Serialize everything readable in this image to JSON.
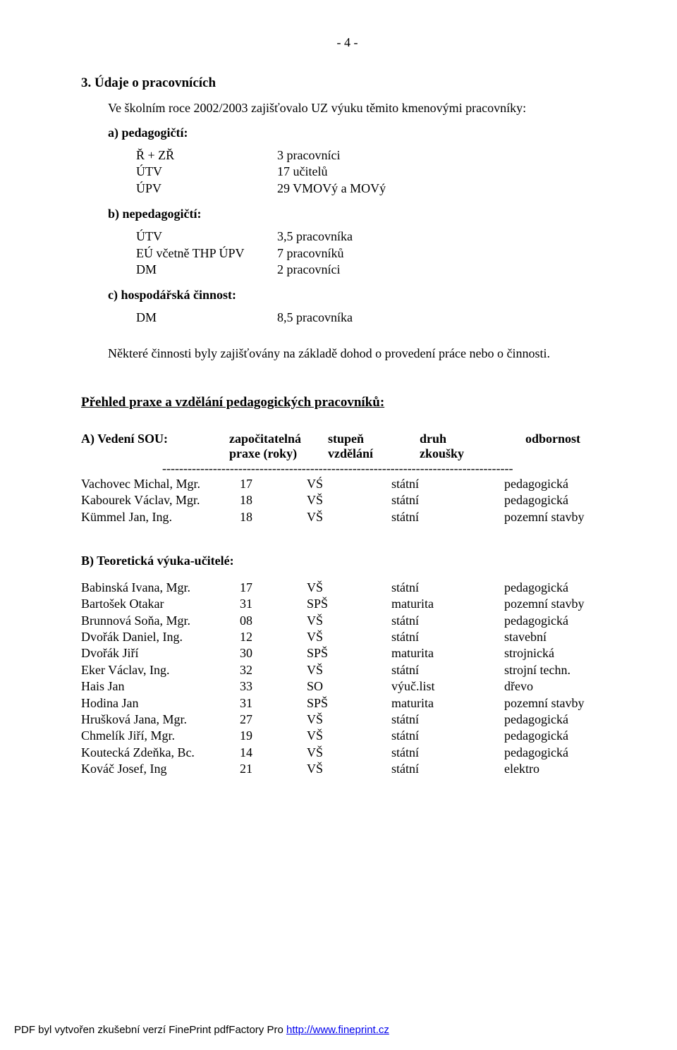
{
  "page_number": "- 4 -",
  "section_title": "3. Údaje o pracovnících",
  "intro": "Ve školním roce 2002/2003 zajišťovalo UZ výuku těmito kmenovými pracovníky:",
  "a_label": "a)  pedagogičtí:",
  "a_rows": [
    {
      "k": "Ř + ZŘ",
      "v": "3 pracovníci"
    },
    {
      "k": "ÚTV",
      "v": "17 učitelů"
    },
    {
      "k": "ÚPV",
      "v": "29 VMOVý a MOVý"
    }
  ],
  "b_label": "b)  nepedagogičtí:",
  "b_rows": [
    {
      "k": "ÚTV",
      "v": "3,5 pracovníka"
    },
    {
      "k": "EÚ včetně THP ÚPV",
      "v": "7 pracovníků"
    },
    {
      "k": "DM",
      "v": "2 pracovníci"
    }
  ],
  "c_label": "c)  hospodářská činnost:",
  "c_rows": [
    {
      "k": "DM",
      "v": "8,5 pracovníka"
    }
  ],
  "mid_para": "Některé činnosti byly zajišťovány na základě dohod o provedení práce nebo o činnosti.",
  "praxe_heading": "Přehled praxe a vzdělání pedagogických pracovníků:",
  "tabA_head": {
    "c1": "A)  Vedení SOU:",
    "c2": "započitatelná",
    "c3": "stupeň",
    "c4": "druh",
    "c5": "odbornost"
  },
  "tabA_sub": {
    "c2": "praxe (roky)",
    "c3": "vzdělání",
    "c4": "zkoušky"
  },
  "dashes": "-----------------------------------------------------------------------------------",
  "rowsA": [
    {
      "c1": "Vachovec Michal, Mgr.",
      "c2": "17",
      "c3": "VŚ",
      "c4": "státní",
      "c5": "pedagogická"
    },
    {
      "c1": "Kabourek Václav, Mgr.",
      "c2": "18",
      "c3": "VŠ",
      "c4": "státní",
      "c5": "pedagogická"
    },
    {
      "c1": "Kümmel Jan, Ing.",
      "c2": "18",
      "c3": "VŠ",
      "c4": "státní",
      "c5": "pozemní stavby"
    }
  ],
  "tabB_head": "B)  Teoretická výuka-učitelé:",
  "rowsB": [
    {
      "c1": "Babinská Ivana, Mgr.",
      "c2": "17",
      "c3": "VŠ",
      "c4": "státní",
      "c5": "pedagogická"
    },
    {
      "c1": "Bartošek Otakar",
      "c2": "31",
      "c3": "SPŠ",
      "c4": "maturita",
      "c5": "pozemní stavby"
    },
    {
      "c1": "Brunnová Soňa, Mgr.",
      "c2": "08",
      "c3": "VŠ",
      "c4": "státní",
      "c5": "pedagogická"
    },
    {
      "c1": "Dvořák Daniel, Ing.",
      "c2": "12",
      "c3": "VŠ",
      "c4": "státní",
      "c5": "stavební"
    },
    {
      "c1": "Dvořák Jiří",
      "c2": "30",
      "c3": "SPŠ",
      "c4": "maturita",
      "c5": "strojnická"
    },
    {
      "c1": "Eker Václav, Ing.",
      "c2": "32",
      "c3": "VŠ",
      "c4": "státní",
      "c5": "strojní techn."
    },
    {
      "c1": "Hais Jan",
      "c2": "33",
      "c3": "SO",
      "c4": "výuč.list",
      "c5": "dřevo"
    },
    {
      "c1": "Hodina Jan",
      "c2": "31",
      "c3": "SPŠ",
      "c4": "maturita",
      "c5": "pozemní stavby"
    },
    {
      "c1": "Hrušková Jana, Mgr.",
      "c2": "27",
      "c3": "VŠ",
      "c4": "státní",
      "c5": "pedagogická"
    },
    {
      "c1": "Chmelík Jiří, Mgr.",
      "c2": "19",
      "c3": "VŠ",
      "c4": "státní",
      "c5": "pedagogická"
    },
    {
      "c1": "Koutecká Zdeňka, Bc.",
      "c2": "14",
      "c3": "VŠ",
      "c4": "státní",
      "c5": "pedagogická"
    },
    {
      "c1": "Kováč Josef, Ing",
      "c2": "21",
      "c3": "VŠ",
      "c4": "státní",
      "c5": "elektro"
    }
  ],
  "footer_prefix": "PDF byl vytvořen zkušební verzí FinePrint pdfFactory Pro ",
  "footer_link": "http://www.fineprint.cz"
}
